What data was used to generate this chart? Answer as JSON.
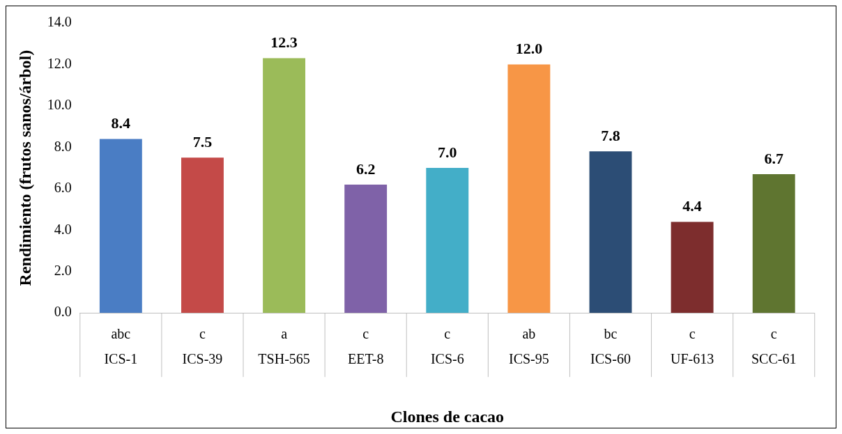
{
  "chart_data": {
    "type": "bar",
    "xlabel": "Clones de cacao",
    "ylabel": "Rendimiento (frutos sanos/árbol)",
    "categories": [
      "ICS-1",
      "ICS-39",
      "TSH-565",
      "EET-8",
      "ICS-6",
      "ICS-95",
      "ICS-60",
      "UF-613",
      "SCC-61"
    ],
    "values": [
      8.4,
      7.5,
      12.3,
      6.2,
      7.0,
      12.0,
      7.8,
      4.4,
      6.7
    ],
    "colors": [
      "#4a7dc4",
      "#c44a48",
      "#9bbb59",
      "#7f62a8",
      "#43aec8",
      "#f79646",
      "#2c4d75",
      "#7d2d2d",
      "#5f7530"
    ],
    "ylim": [
      0,
      14
    ],
    "yticks": [
      {
        "value": 0,
        "label": "0.0"
      },
      {
        "value": 2,
        "label": "2.0"
      },
      {
        "value": 4,
        "label": "4.0"
      },
      {
        "value": 6,
        "label": "6.0"
      },
      {
        "value": 8,
        "label": "8.0"
      },
      {
        "value": 10,
        "label": "10.0"
      },
      {
        "value": 12,
        "label": "12.0"
      },
      {
        "value": 14,
        "label": "14.0"
      }
    ],
    "value_labels": [
      "8.4",
      "7.5",
      "12.3",
      "6.2",
      "7.0",
      "12.0",
      "7.8",
      "4.4",
      "6.7"
    ],
    "annotations": [
      "abc",
      "c",
      "a",
      "c",
      "c",
      "ab",
      "bc",
      "c",
      "c"
    ],
    "grid": false,
    "legend": false
  }
}
